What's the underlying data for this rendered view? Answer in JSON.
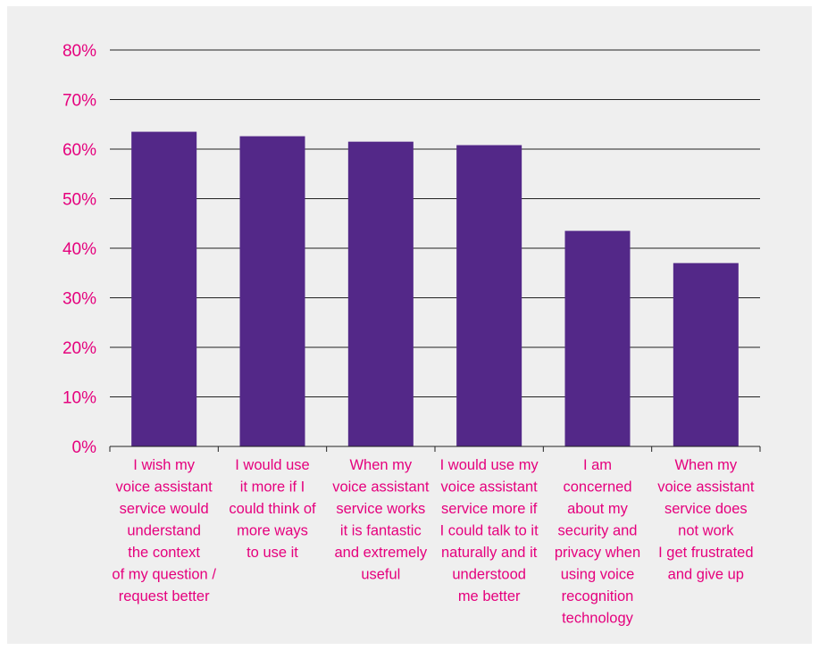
{
  "colors": {
    "bar": "#532888",
    "text": "#e5007d",
    "grid": "#222222",
    "panel": "#efefef"
  },
  "chart_data": {
    "type": "bar",
    "title": "",
    "xlabel": "",
    "ylabel": "",
    "ylim": [
      0,
      80
    ],
    "yticks": [
      "0%",
      "10%",
      "20%",
      "30%",
      "40%",
      "50%",
      "60%",
      "70%",
      "80%"
    ],
    "grid": true,
    "categories": [
      [
        "I wish my",
        "voice assistant",
        "service would",
        "understand",
        "the context",
        "of my question /",
        "request better"
      ],
      [
        "I would use",
        "it more if I",
        "could think of",
        "more ways",
        "to use it"
      ],
      [
        "When my",
        "voice assistant",
        "service works",
        "it is fantastic",
        "and extremely",
        "useful"
      ],
      [
        "I would use my",
        "voice assistant",
        "service more if",
        "I could talk to it",
        "naturally and it",
        "understood",
        "me better"
      ],
      [
        "I am",
        "concerned",
        "about my",
        "security and",
        "privacy when",
        "using voice",
        "recognition",
        "technology"
      ],
      [
        "When my",
        "voice assistant",
        "service does",
        "not work",
        "I get frustrated",
        "and give up"
      ]
    ],
    "series": [
      {
        "values": [
          63.5,
          62.6,
          61.5,
          60.8,
          43.5,
          37.0
        ]
      }
    ]
  }
}
